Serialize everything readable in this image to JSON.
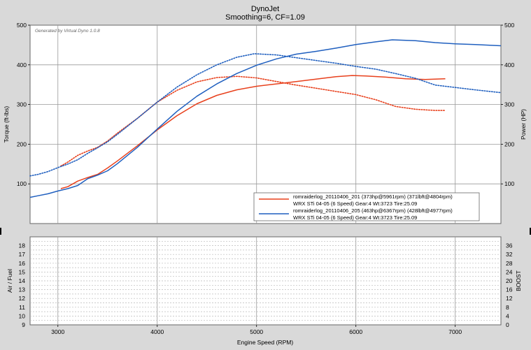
{
  "chart_data": [
    {
      "type": "line",
      "title": "DynoJet",
      "subtitle": "Smoothing=6, CF=1.09",
      "watermark": "Generated by Virtual Dyno 1.0.8",
      "xlabel": "Engine Speed (RPM)",
      "ylabel_left": "Torque (ft-lbs)",
      "ylabel_right": "Power (HP)",
      "xlim": [
        2720,
        7460
      ],
      "ylim": [
        0,
        500
      ],
      "grid": true,
      "x_ticks": [
        3000,
        4000,
        5000,
        6000,
        7000
      ],
      "y_ticks_left": [
        100,
        200,
        300,
        400,
        500
      ],
      "y_ticks_right": [
        100,
        200,
        300,
        400,
        500
      ],
      "legend_position": "bottom-right",
      "legend": [
        {
          "line1": "romraiderlog_20110406_201 (373hp@5961rpm) (371lbft@4804rpm)",
          "line2": "WRX STi 04-05 (6 Speed) Gear:4 Wt:3723 Tire:25.09",
          "color": "#e8401c"
        },
        {
          "line1": "romraiderlog_20110406_205 (463hp@6367rpm) (428lbft@4977rpm)",
          "line2": "WRX STi 04-05 (6 Speed) Gear:4 Wt:3723 Tire:25.09",
          "color": "#1f5fbf"
        }
      ],
      "series": [
        {
          "name": "romraiderlog_20110406_201",
          "kind": "power",
          "color": "#e8401c",
          "dashed": false,
          "x": [
            3030,
            3100,
            3200,
            3300,
            3400,
            3500,
            3600,
            3800,
            4000,
            4200,
            4400,
            4600,
            4800,
            5000,
            5200,
            5400,
            5600,
            5800,
            5961,
            6100,
            6300,
            6500,
            6700,
            6900
          ],
          "y": [
            88,
            93,
            107,
            116,
            124,
            140,
            158,
            196,
            236,
            272,
            302,
            323,
            337,
            346,
            352,
            358,
            364,
            370,
            373,
            372,
            369,
            365,
            363,
            365
          ]
        },
        {
          "name": "romraiderlog_20110406_201",
          "kind": "torque",
          "color": "#e8401c",
          "dashed": true,
          "x": [
            3030,
            3100,
            3200,
            3300,
            3400,
            3500,
            3600,
            3800,
            4000,
            4200,
            4400,
            4600,
            4804,
            5000,
            5200,
            5400,
            5600,
            5800,
            6000,
            6200,
            6400,
            6600,
            6800,
            6900
          ],
          "y": [
            145,
            155,
            172,
            183,
            192,
            208,
            228,
            265,
            306,
            336,
            357,
            368,
            371,
            367,
            358,
            349,
            341,
            333,
            325,
            312,
            295,
            288,
            285,
            285
          ]
        },
        {
          "name": "romraiderlog_20110406_205",
          "kind": "power",
          "color": "#1f5fbf",
          "dashed": false,
          "x": [
            2720,
            2800,
            2900,
            3000,
            3100,
            3200,
            3300,
            3400,
            3500,
            3600,
            3800,
            4000,
            4200,
            4400,
            4600,
            4800,
            5000,
            5200,
            5400,
            5600,
            5800,
            6000,
            6200,
            6367,
            6600,
            6800,
            7000,
            7200,
            7460
          ],
          "y": [
            66,
            70,
            75,
            82,
            88,
            96,
            113,
            122,
            133,
            151,
            192,
            238,
            283,
            321,
            352,
            378,
            399,
            415,
            427,
            434,
            442,
            451,
            458,
            463,
            461,
            456,
            453,
            451,
            448
          ]
        },
        {
          "name": "romraiderlog_20110406_205",
          "kind": "torque",
          "color": "#1f5fbf",
          "dashed": true,
          "x": [
            2720,
            2800,
            2900,
            3000,
            3100,
            3200,
            3300,
            3400,
            3500,
            3600,
            3800,
            4000,
            4200,
            4400,
            4600,
            4800,
            4977,
            5200,
            5400,
            5600,
            5800,
            6000,
            6200,
            6400,
            6600,
            6800,
            7000,
            7200,
            7460
          ],
          "y": [
            120,
            124,
            131,
            141,
            150,
            161,
            177,
            191,
            206,
            225,
            265,
            306,
            344,
            375,
            400,
            419,
            428,
            425,
            418,
            411,
            404,
            396,
            389,
            378,
            366,
            349,
            343,
            337,
            330
          ]
        }
      ]
    },
    {
      "type": "line",
      "xlabel": "Engine Speed (RPM)",
      "ylabel_left": "Air / Fuel",
      "ylabel_right": "BOOST",
      "xlim": [
        2720,
        7460
      ],
      "ylim_left": [
        9,
        19
      ],
      "ylim_right": [
        0,
        40
      ],
      "grid": true,
      "x_ticks": [
        3000,
        4000,
        5000,
        6000,
        7000
      ],
      "y_ticks_left": [
        9,
        10,
        11,
        12,
        13,
        14,
        15,
        16,
        17,
        18
      ],
      "y_ticks_right": [
        0,
        4,
        8,
        12,
        16,
        20,
        24,
        28,
        32,
        36
      ],
      "series": []
    }
  ]
}
